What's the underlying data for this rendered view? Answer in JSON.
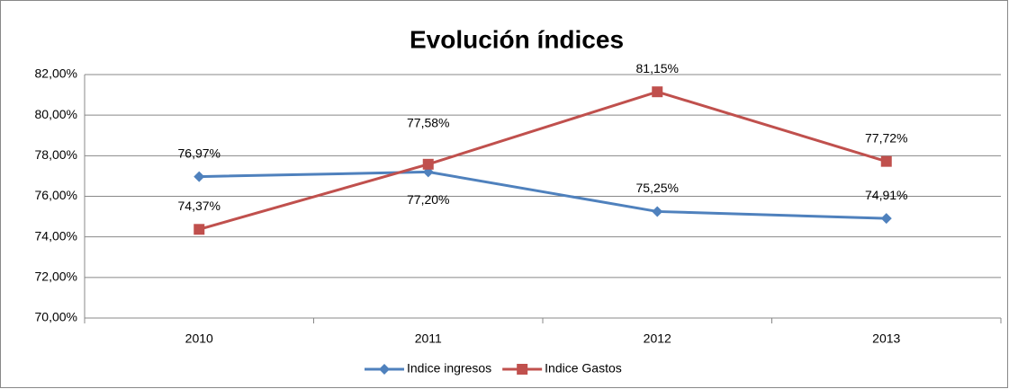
{
  "chart_data": {
    "type": "line",
    "title": "Evolución índices",
    "categories": [
      "2010",
      "2011",
      "2012",
      "2013"
    ],
    "series": [
      {
        "name": "Indice ingresos",
        "color": "#4f81bd",
        "marker": "diamond",
        "values": [
          76.97,
          77.2,
          75.25,
          74.91
        ],
        "value_labels": [
          "76,97%",
          "77,20%",
          "75,25%",
          "74,91%"
        ]
      },
      {
        "name": "Indice Gastos",
        "color": "#c0504d",
        "marker": "square",
        "values": [
          74.37,
          77.58,
          81.15,
          77.72
        ],
        "value_labels": [
          "74,37%",
          "77,58%",
          "81,15%",
          "77,72%"
        ]
      }
    ],
    "ylim": [
      70,
      82
    ],
    "yticks": [
      {
        "value": 70,
        "label": "70,00%"
      },
      {
        "value": 72,
        "label": "72,00%"
      },
      {
        "value": 74,
        "label": "74,00%"
      },
      {
        "value": 76,
        "label": "76,00%"
      },
      {
        "value": 78,
        "label": "78,00%"
      },
      {
        "value": 80,
        "label": "80,00%"
      },
      {
        "value": 82,
        "label": "82,00%"
      }
    ],
    "grid": true,
    "legend": "bottom"
  }
}
